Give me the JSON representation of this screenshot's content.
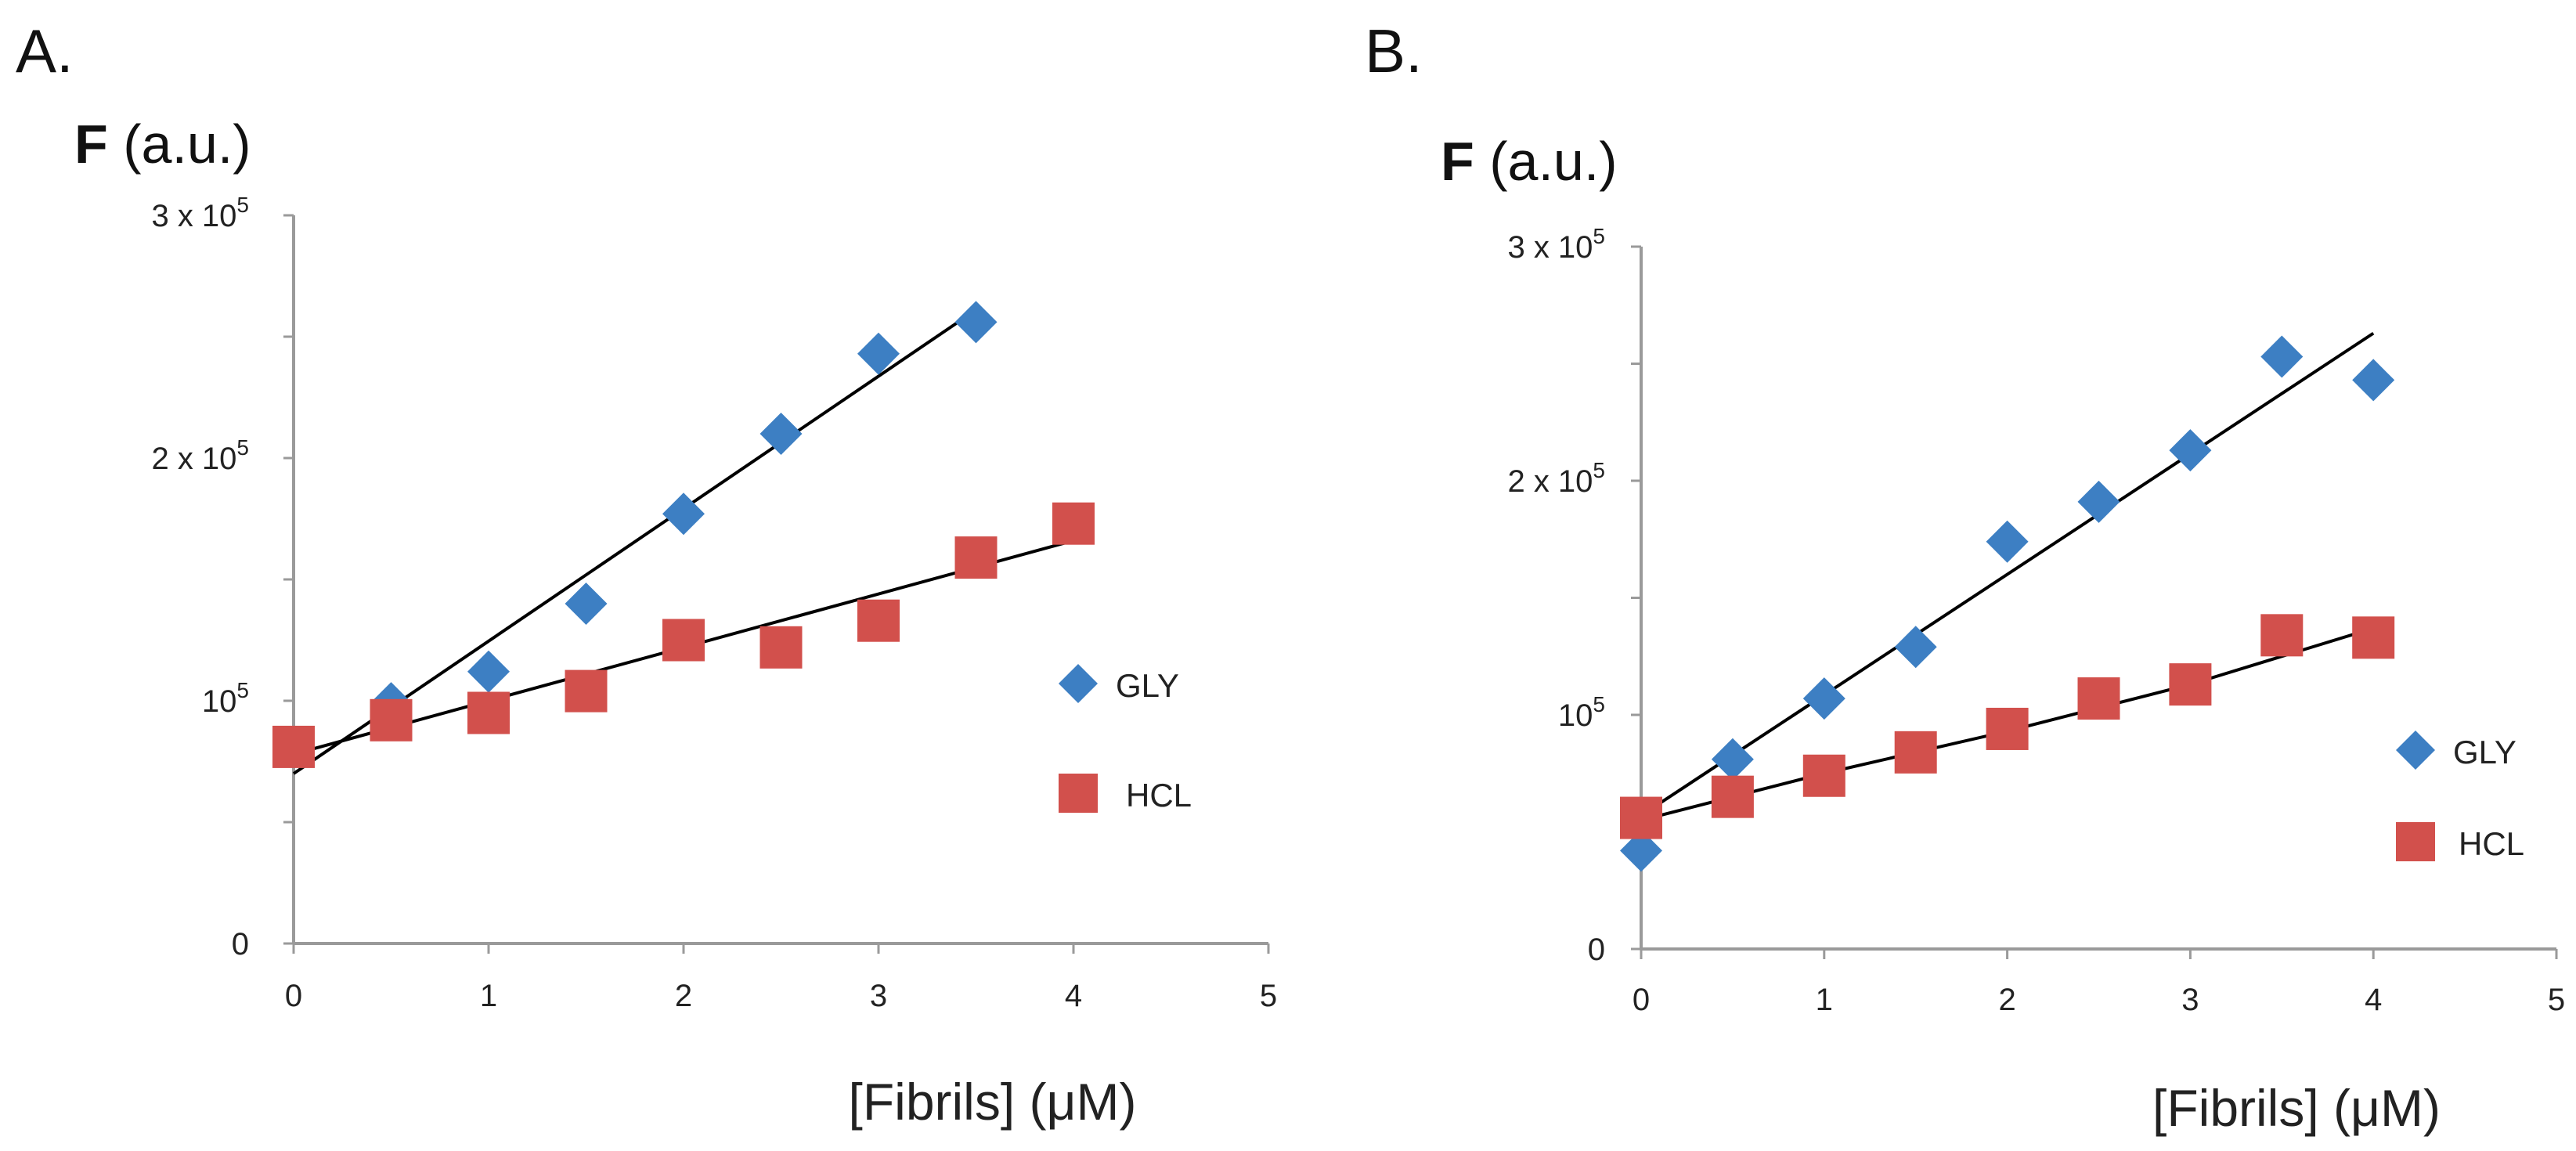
{
  "chart_data": [
    {
      "type": "scatter",
      "panel_label": "A.",
      "ylabel_bold": "F",
      "ylabel_unit": "(a.u.)",
      "xlabel": "[Fibrils] (μM)",
      "xlim": [
        0,
        5
      ],
      "ylim": [
        0,
        300000
      ],
      "x_ticks": [
        "0",
        "1",
        "2",
        "3",
        "4",
        "5"
      ],
      "y_tick_labels": [
        {
          "value": 300000,
          "mantissa": "3 x 10",
          "exp": "5"
        },
        {
          "value": 200000,
          "mantissa": "2 x 10",
          "exp": "5"
        },
        {
          "value": 100000,
          "mantissa": "10",
          "exp": "5"
        },
        {
          "value": 0,
          "mantissa": "0",
          "exp": ""
        }
      ],
      "y_minor_ticks": [
        50000,
        150000,
        250000
      ],
      "series": [
        {
          "name": "GLY",
          "marker": "diamond",
          "color": "#3d7fc3",
          "x": [
            0.5,
            1.0,
            1.5,
            2.0,
            2.5,
            3.0,
            3.5
          ],
          "y": [
            99000,
            112000,
            140000,
            177000,
            210000,
            243000,
            256000
          ],
          "fit": [
            [
              0,
              70000
            ],
            [
              3.5,
              261000
            ]
          ]
        },
        {
          "name": "HCL",
          "marker": "square",
          "color": "#d2504c",
          "x": [
            0.0,
            0.5,
            1.0,
            1.5,
            2.0,
            2.5,
            3.0,
            3.5,
            4.0
          ],
          "y": [
            81000,
            92000,
            95000,
            104000,
            125000,
            122000,
            133000,
            159000,
            173000
          ],
          "fit": [
            [
              0,
              78000
            ],
            [
              4.0,
              166000
            ]
          ]
        }
      ]
    },
    {
      "type": "scatter",
      "panel_label": "B.",
      "ylabel_bold": "F",
      "ylabel_unit": "(a.u.)",
      "xlabel": "[Fibrils] (μM)",
      "xlim": [
        0,
        5
      ],
      "ylim": [
        0,
        300000
      ],
      "x_ticks": [
        "0",
        "1",
        "2",
        "3",
        "4",
        "5"
      ],
      "y_tick_labels": [
        {
          "value": 300000,
          "mantissa": "3 x 10",
          "exp": "5"
        },
        {
          "value": 200000,
          "mantissa": "2 x 10",
          "exp": "5"
        },
        {
          "value": 100000,
          "mantissa": "10",
          "exp": "5"
        },
        {
          "value": 0,
          "mantissa": "0",
          "exp": ""
        }
      ],
      "y_minor_ticks": [
        50000,
        150000,
        250000
      ],
      "series": [
        {
          "name": "GLY",
          "marker": "diamond",
          "color": "#3d7fc3",
          "x": [
            0.0,
            0.5,
            1.0,
            1.5,
            2.0,
            2.5,
            3.0,
            3.5,
            4.0
          ],
          "y": [
            42000,
            81000,
            107000,
            129000,
            174000,
            191000,
            213000,
            253000,
            243000
          ],
          "fit": [
            [
              0,
              57000
            ],
            [
              4.0,
              263000
            ]
          ]
        },
        {
          "name": "HCL",
          "marker": "square",
          "color": "#d2504c",
          "x": [
            0.0,
            0.5,
            1.0,
            1.5,
            2.0,
            2.5,
            3.0,
            3.5,
            4.0
          ],
          "y": [
            56000,
            65000,
            74000,
            84000,
            94000,
            107000,
            113000,
            134000,
            133000
          ],
          "fit": [
            [
              0,
              55000
            ],
            [
              1.0,
              75000
            ],
            [
              2.0,
              93000
            ],
            [
              3.0,
              113000
            ],
            [
              4.0,
              137000
            ]
          ]
        }
      ]
    }
  ]
}
